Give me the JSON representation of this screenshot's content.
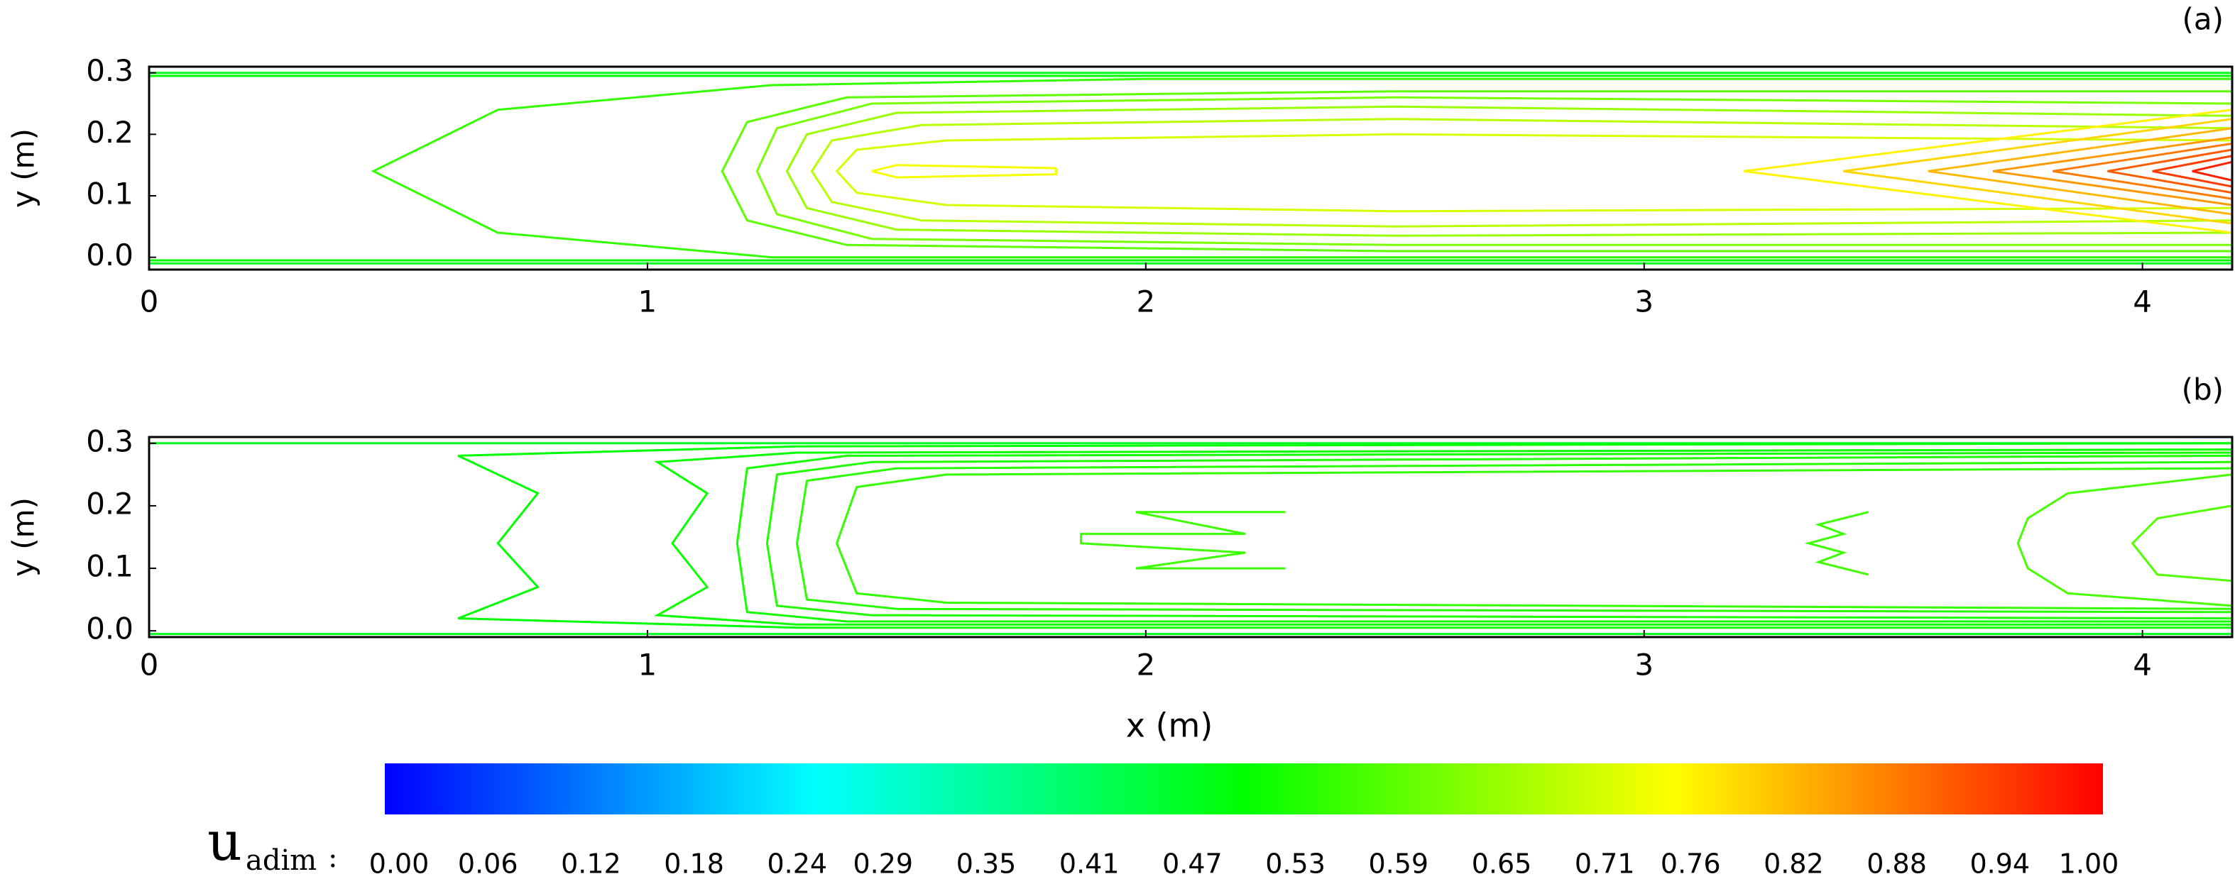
{
  "chart_data": [
    {
      "type": "contour",
      "label": "(a)",
      "ylabel": "y  (m)",
      "xlim": [
        0,
        4.18
      ],
      "ylim": [
        -0.02,
        0.31
      ],
      "xticks": [
        0,
        1,
        2,
        3,
        4
      ],
      "yticks": [
        {
          "value": 0,
          "label": "0.0"
        },
        0.1,
        0.2,
        0.3
      ],
      "contours": [
        {
          "level": 0.47,
          "x": [
            0,
            4.18
          ],
          "y": [
            0.3,
            0.3
          ]
        },
        {
          "level": 0.47,
          "x": [
            0,
            4.18
          ],
          "y": [
            -0.01,
            -0.01
          ]
        },
        {
          "level": 0.5,
          "x": [
            0,
            4.18
          ],
          "y": [
            0.295,
            0.295
          ]
        },
        {
          "level": 0.5,
          "x": [
            0,
            4.18
          ],
          "y": [
            -0.005,
            -0.005
          ]
        },
        {
          "level": 0.55,
          "x": [
            4.18,
            2.0,
            1.25,
            0.7,
            0.45,
            0.7,
            1.25,
            2.0,
            4.18
          ],
          "y": [
            0.29,
            0.29,
            0.28,
            0.24,
            0.14,
            0.04,
            0.0,
            0.0,
            0.0
          ]
        },
        {
          "level": 0.59,
          "x": [
            4.18,
            2.5,
            1.4,
            1.2,
            1.15,
            1.2,
            1.4,
            2.5,
            4.18
          ],
          "y": [
            0.27,
            0.27,
            0.26,
            0.22,
            0.14,
            0.06,
            0.02,
            0.01,
            0.01
          ]
        },
        {
          "level": 0.62,
          "x": [
            4.18,
            2.5,
            1.45,
            1.26,
            1.22,
            1.26,
            1.45,
            2.5,
            4.18
          ],
          "y": [
            0.25,
            0.26,
            0.25,
            0.21,
            0.14,
            0.07,
            0.03,
            0.02,
            0.02
          ]
        },
        {
          "level": 0.65,
          "x": [
            4.18,
            2.5,
            1.5,
            1.32,
            1.28,
            1.32,
            1.5,
            2.5,
            4.18
          ],
          "y": [
            0.23,
            0.245,
            0.235,
            0.2,
            0.14,
            0.08,
            0.045,
            0.035,
            0.04
          ]
        },
        {
          "level": 0.68,
          "x": [
            4.18,
            2.5,
            1.55,
            1.37,
            1.33,
            1.37,
            1.55,
            2.5,
            4.18
          ],
          "y": [
            0.21,
            0.225,
            0.215,
            0.19,
            0.14,
            0.09,
            0.06,
            0.05,
            0.06
          ]
        },
        {
          "level": 0.71,
          "x": [
            4.18,
            2.5,
            1.6,
            1.42,
            1.38,
            1.42,
            1.6,
            2.5,
            4.18
          ],
          "y": [
            0.19,
            0.2,
            0.19,
            0.175,
            0.14,
            0.105,
            0.085,
            0.075,
            0.08
          ]
        },
        {
          "level": 0.74,
          "x": [
            1.82,
            1.5,
            1.45,
            1.5,
            1.82,
            1.82
          ],
          "y": [
            0.145,
            0.15,
            0.14,
            0.13,
            0.135,
            0.145
          ]
        },
        {
          "level": 0.76,
          "x": [
            4.18,
            3.2,
            4.18
          ],
          "y": [
            0.24,
            0.14,
            0.04
          ]
        },
        {
          "level": 0.79,
          "x": [
            4.18,
            3.4,
            4.18
          ],
          "y": [
            0.225,
            0.14,
            0.055
          ]
        },
        {
          "level": 0.82,
          "x": [
            4.18,
            3.57,
            4.18
          ],
          "y": [
            0.21,
            0.14,
            0.07
          ]
        },
        {
          "level": 0.85,
          "x": [
            4.18,
            3.7,
            4.18
          ],
          "y": [
            0.195,
            0.14,
            0.085
          ]
        },
        {
          "level": 0.88,
          "x": [
            4.18,
            3.82,
            4.18
          ],
          "y": [
            0.185,
            0.14,
            0.095
          ]
        },
        {
          "level": 0.91,
          "x": [
            4.18,
            3.93,
            4.18
          ],
          "y": [
            0.175,
            0.14,
            0.105
          ]
        },
        {
          "level": 0.94,
          "x": [
            4.18,
            4.02,
            4.18
          ],
          "y": [
            0.165,
            0.14,
            0.115
          ]
        },
        {
          "level": 0.97,
          "x": [
            4.18,
            4.1,
            4.18
          ],
          "y": [
            0.155,
            0.14,
            0.125
          ]
        }
      ]
    },
    {
      "type": "contour",
      "label": "(b)",
      "ylabel": "y  (m)",
      "xlabel": "x  (m)",
      "xlim": [
        0,
        4.18
      ],
      "ylim": [
        -0.01,
        0.31
      ],
      "xticks": [
        0,
        1,
        2,
        3,
        4
      ],
      "yticks": [
        {
          "value": 0,
          "label": "0.0"
        },
        0.1,
        0.2,
        0.3
      ],
      "contours": [
        {
          "level": 0.47,
          "x": [
            0,
            4.18
          ],
          "y": [
            0.3,
            0.3
          ]
        },
        {
          "level": 0.47,
          "x": [
            0,
            4.18
          ],
          "y": [
            -0.005,
            -0.005
          ]
        },
        {
          "level": 0.5,
          "x": [
            4.18,
            1.3,
            0.62,
            0.78,
            0.7,
            0.78,
            0.62,
            1.3,
            4.18
          ],
          "y": [
            0.3,
            0.295,
            0.28,
            0.22,
            0.14,
            0.07,
            0.02,
            0.005,
            0.005
          ]
        },
        {
          "level": 0.51,
          "x": [
            4.18,
            1.3,
            1.02,
            1.12,
            1.05,
            1.12,
            1.02,
            1.3,
            4.18
          ],
          "y": [
            0.29,
            0.285,
            0.27,
            0.22,
            0.14,
            0.07,
            0.025,
            0.01,
            0.01
          ]
        },
        {
          "level": 0.52,
          "x": [
            4.18,
            1.4,
            1.2,
            1.18,
            1.2,
            1.4,
            4.18
          ],
          "y": [
            0.285,
            0.28,
            0.26,
            0.14,
            0.03,
            0.015,
            0.015
          ]
        },
        {
          "level": 0.53,
          "x": [
            4.18,
            1.45,
            1.26,
            1.24,
            1.26,
            1.45,
            4.18
          ],
          "y": [
            0.28,
            0.27,
            0.25,
            0.14,
            0.04,
            0.025,
            0.02
          ]
        },
        {
          "level": 0.54,
          "x": [
            4.18,
            1.5,
            1.32,
            1.3,
            1.32,
            1.5,
            4.18
          ],
          "y": [
            0.27,
            0.26,
            0.24,
            0.14,
            0.05,
            0.035,
            0.03
          ]
        },
        {
          "level": 0.55,
          "x": [
            4.18,
            1.6,
            1.42,
            1.38,
            1.42,
            1.6,
            4.18
          ],
          "y": [
            0.26,
            0.25,
            0.23,
            0.14,
            0.06,
            0.045,
            0.035
          ]
        },
        {
          "level": 0.56,
          "x": [
            2.28,
            1.98,
            2.2,
            1.87,
            1.87,
            2.2,
            1.98,
            2.28
          ],
          "y": [
            0.19,
            0.19,
            0.155,
            0.155,
            0.14,
            0.125,
            0.1,
            0.1
          ]
        },
        {
          "level": 0.56,
          "x": [
            3.45,
            3.35,
            3.4,
            3.33,
            3.4,
            3.35,
            3.45
          ],
          "y": [
            0.19,
            0.17,
            0.155,
            0.14,
            0.125,
            0.11,
            0.09
          ]
        },
        {
          "level": 0.57,
          "x": [
            4.18,
            3.85,
            3.77,
            3.75,
            3.77,
            3.85,
            4.18
          ],
          "y": [
            0.25,
            0.22,
            0.18,
            0.14,
            0.1,
            0.06,
            0.04
          ]
        },
        {
          "level": 0.58,
          "x": [
            4.18,
            4.03,
            3.98,
            4.03,
            4.18
          ],
          "y": [
            0.2,
            0.18,
            0.14,
            0.09,
            0.08
          ]
        }
      ]
    }
  ],
  "colorbar": {
    "symbol": "u",
    "subscript": "adim",
    "separator": ":",
    "clim": [
      0,
      1
    ],
    "colormap": [
      "#0000ff",
      "#00ffff",
      "#00ff00",
      "#ffff00",
      "#ff0000"
    ],
    "ticks": [
      {
        "value": 0,
        "label": "0.00"
      },
      {
        "value": 0.06,
        "label": "0.06"
      },
      {
        "value": 0.12,
        "label": "0.12"
      },
      {
        "value": 0.18,
        "label": "0.18"
      },
      {
        "value": 0.24,
        "label": "0.24"
      },
      {
        "value": 0.29,
        "label": "0.29"
      },
      {
        "value": 0.35,
        "label": "0.35"
      },
      {
        "value": 0.41,
        "label": "0.41"
      },
      {
        "value": 0.47,
        "label": "0.47"
      },
      {
        "value": 0.53,
        "label": "0.53"
      },
      {
        "value": 0.59,
        "label": "0.59"
      },
      {
        "value": 0.65,
        "label": "0.65"
      },
      {
        "value": 0.71,
        "label": "0.71"
      },
      {
        "value": 0.76,
        "label": "0.76"
      },
      {
        "value": 0.82,
        "label": "0.82"
      },
      {
        "value": 0.88,
        "label": "0.88"
      },
      {
        "value": 0.94,
        "label": "0.94"
      },
      {
        "value": 1,
        "label": "1.00"
      }
    ]
  }
}
